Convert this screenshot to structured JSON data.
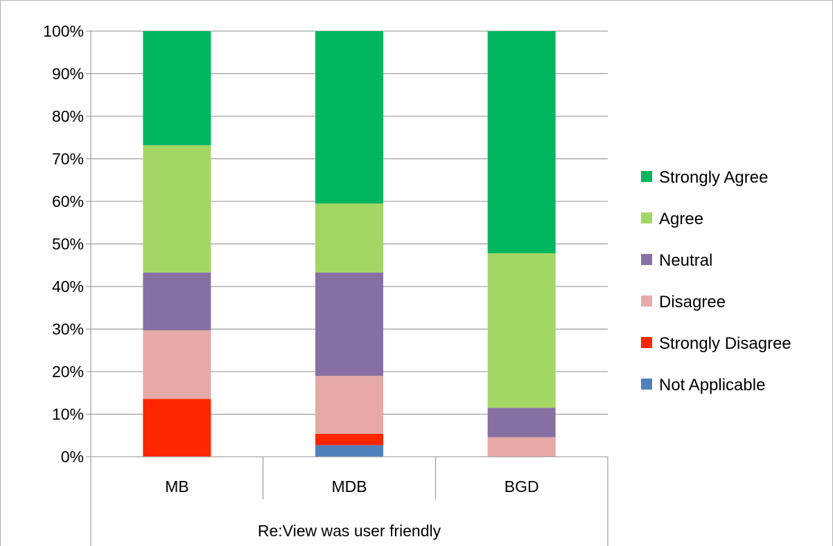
{
  "chart_data": {
    "type": "bar",
    "stacked": true,
    "percent_stacked": true,
    "group_label": "Re:View was user friendly",
    "categories": [
      "MB",
      "MDB",
      "BGD"
    ],
    "ylim": [
      0,
      100
    ],
    "y_ticks": [
      "0%",
      "10%",
      "20%",
      "30%",
      "40%",
      "50%",
      "60%",
      "70%",
      "80%",
      "90%",
      "100%"
    ],
    "grid": "horizontal",
    "legend_position": "right",
    "series": [
      {
        "name": "Not Applicable",
        "color": "#4f81bd",
        "values": [
          0,
          2.7,
          0
        ]
      },
      {
        "name": "Strongly Disagree",
        "color": "#ff2600",
        "values": [
          13.6,
          2.7,
          0
        ]
      },
      {
        "name": "Disagree",
        "color": "#e6a9a7",
        "values": [
          16.1,
          13.6,
          4.6
        ]
      },
      {
        "name": "Neutral",
        "color": "#8670a3",
        "values": [
          13.6,
          24.3,
          6.9
        ]
      },
      {
        "name": "Agree",
        "color": "#a4d665",
        "values": [
          29.9,
          16.2,
          36.3
        ]
      },
      {
        "name": "Strongly Agree",
        "color": "#00b760",
        "values": [
          26.8,
          40.5,
          52.2
        ]
      }
    ]
  }
}
